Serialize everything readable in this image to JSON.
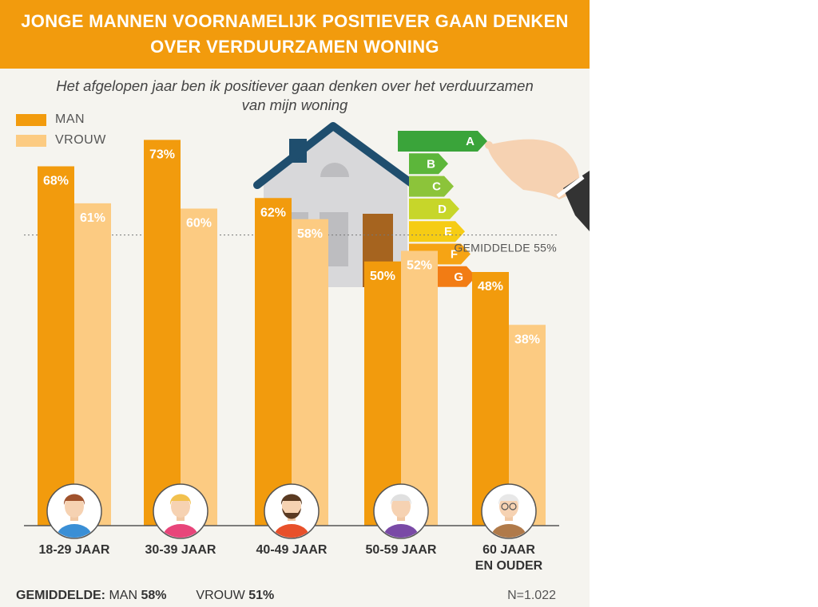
{
  "title": {
    "line1": "JONGE MANNEN VOORNAMELIJK POSITIEVER GAAN DENKEN",
    "line2": "OVER VERDUURZAMEN WONING"
  },
  "subtitle": {
    "line1": "Het afgelopen jaar ben ik positiever gaan denken over het verduurzamen",
    "line2": "van mijn woning"
  },
  "legend": {
    "man": "MAN",
    "vrouw": "VROUW"
  },
  "colors": {
    "man": "#f29b0d",
    "vrouw": "#fccb82",
    "header": "#f29b0d",
    "background": "#f5f4ef"
  },
  "energy_label": {
    "letters": [
      "A",
      "B",
      "C",
      "D",
      "E",
      "F",
      "G"
    ],
    "colors": [
      "#3aa43a",
      "#5cb63a",
      "#8cc43a",
      "#c7d62a",
      "#f6cc14",
      "#f6a414",
      "#f27c14"
    ]
  },
  "chart_data": {
    "type": "bar",
    "categories": [
      "18-29 JAAR",
      "30-39 JAAR",
      "40-49 JAAR",
      "50-59 JAAR",
      "60 JAAR EN OUDER"
    ],
    "category_lines": [
      [
        "18-29 JAAR"
      ],
      [
        "30-39 JAAR"
      ],
      [
        "40-49 JAAR"
      ],
      [
        "50-59 JAAR"
      ],
      [
        "60 JAAR",
        "EN OUDER"
      ]
    ],
    "series": [
      {
        "name": "MAN",
        "values": [
          68,
          73,
          62,
          50,
          48
        ],
        "labels": [
          "68%",
          "73%",
          "62%",
          "50%",
          "48%"
        ]
      },
      {
        "name": "VROUW",
        "values": [
          61,
          60,
          58,
          52,
          38
        ],
        "labels": [
          "61%",
          "60%",
          "58%",
          "52%",
          "38%"
        ]
      }
    ],
    "reference_line": {
      "value": 55,
      "label": "GEMIDDELDE 55%"
    },
    "ylim": [
      0,
      80
    ],
    "grid": false,
    "legend_position": "top-left"
  },
  "footer": {
    "avg_label": "GEMIDDELDE:",
    "man_label": "MAN",
    "man_value": "58%",
    "vrouw_label": "VROUW",
    "vrouw_value": "51%",
    "n": "N=1.022"
  }
}
